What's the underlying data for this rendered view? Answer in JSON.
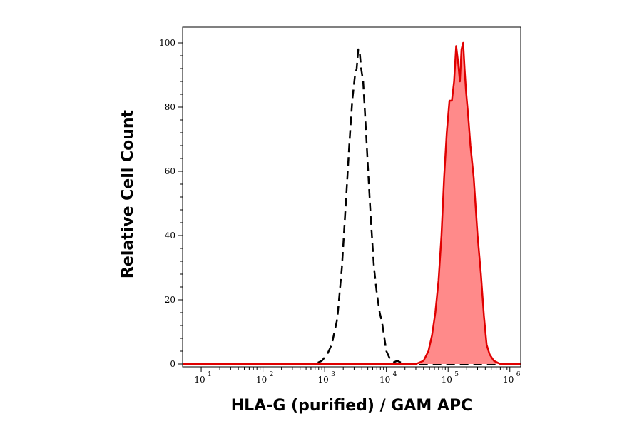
{
  "chart_data": {
    "type": "area",
    "title": "",
    "xlabel": "HLA-G (purified) / GAM APC",
    "ylabel": "Relative Cell Count",
    "x_scale": "log",
    "xlim": [
      5,
      1500000
    ],
    "ylim": [
      0,
      100
    ],
    "x_ticks": [
      {
        "base": "10",
        "exp": "1",
        "value": 10
      },
      {
        "base": "10",
        "exp": "2",
        "value": 100
      },
      {
        "base": "10",
        "exp": "3",
        "value": 1000
      },
      {
        "base": "10",
        "exp": "4",
        "value": 10000
      },
      {
        "base": "10",
        "exp": "5",
        "value": 100000
      },
      {
        "base": "10",
        "exp": "6",
        "value": 1000000
      }
    ],
    "y_ticks": [
      "0",
      "20",
      "40",
      "60",
      "80",
      "100"
    ],
    "grid": false,
    "legend": "none",
    "series": [
      {
        "style": "dashed",
        "color": "#000000",
        "x": [
          5,
          700,
          900,
          1100,
          1300,
          1600,
          1900,
          2200,
          2500,
          2800,
          3100,
          3300,
          3500,
          3700,
          3900,
          4200,
          4500,
          5000,
          5600,
          6300,
          7000,
          7800,
          8500,
          9300,
          10000,
          11500,
          13000,
          15000,
          17000,
          20000,
          1500000
        ],
        "y": [
          0,
          0,
          1,
          3,
          6,
          14,
          30,
          50,
          68,
          82,
          90,
          92,
          98,
          97,
          92,
          88,
          78,
          62,
          45,
          30,
          22,
          16,
          13,
          8,
          4,
          1.5,
          0.5,
          1,
          0.5,
          0,
          0
        ]
      },
      {
        "style": "filled",
        "color": "#e00000",
        "fill": "#ff8a8a",
        "x": [
          5,
          30000,
          40000,
          48000,
          55000,
          62000,
          70000,
          78000,
          86000,
          95000,
          105000,
          115000,
          125000,
          135000,
          145000,
          155000,
          165000,
          175000,
          185000,
          195000,
          210000,
          230000,
          260000,
          300000,
          340000,
          380000,
          420000,
          470000,
          550000,
          700000,
          1500000
        ],
        "y": [
          0,
          0,
          1,
          4,
          9,
          16,
          26,
          40,
          58,
          72,
          82,
          82,
          88,
          99,
          94,
          88,
          98,
          100,
          92,
          85,
          78,
          68,
          58,
          40,
          28,
          15,
          6,
          3,
          1,
          0,
          0
        ]
      }
    ]
  }
}
